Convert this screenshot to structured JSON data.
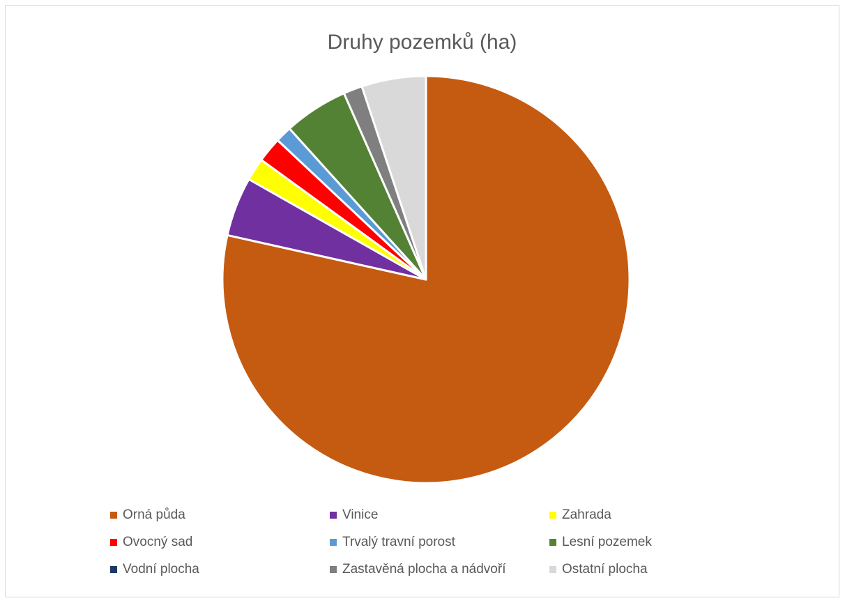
{
  "chart_data": {
    "type": "pie",
    "title": "Druhy pozemků (ha)",
    "slices": [
      {
        "label": "Orná půda",
        "value": 78.5,
        "color": "#C55A11"
      },
      {
        "label": "Vinice",
        "value": 4.7,
        "color": "#7030A0"
      },
      {
        "label": "Zahrada",
        "value": 1.8,
        "color": "#FFFF00"
      },
      {
        "label": "Ovocný sad",
        "value": 2.0,
        "color": "#FF0000"
      },
      {
        "label": "Trvalý travní porost",
        "value": 1.3,
        "color": "#5B9BD5"
      },
      {
        "label": "Lesní pozemek",
        "value": 5.1,
        "color": "#548235"
      },
      {
        "label": "Vodní plocha",
        "value": 0.0,
        "color": "#203864"
      },
      {
        "label": "Zastavěná plocha a nádvoří",
        "value": 1.5,
        "color": "#7F7F7F"
      },
      {
        "label": "Ostatní plocha",
        "value": 5.1,
        "color": "#D9D9D9"
      }
    ],
    "legend_position": "bottom"
  }
}
